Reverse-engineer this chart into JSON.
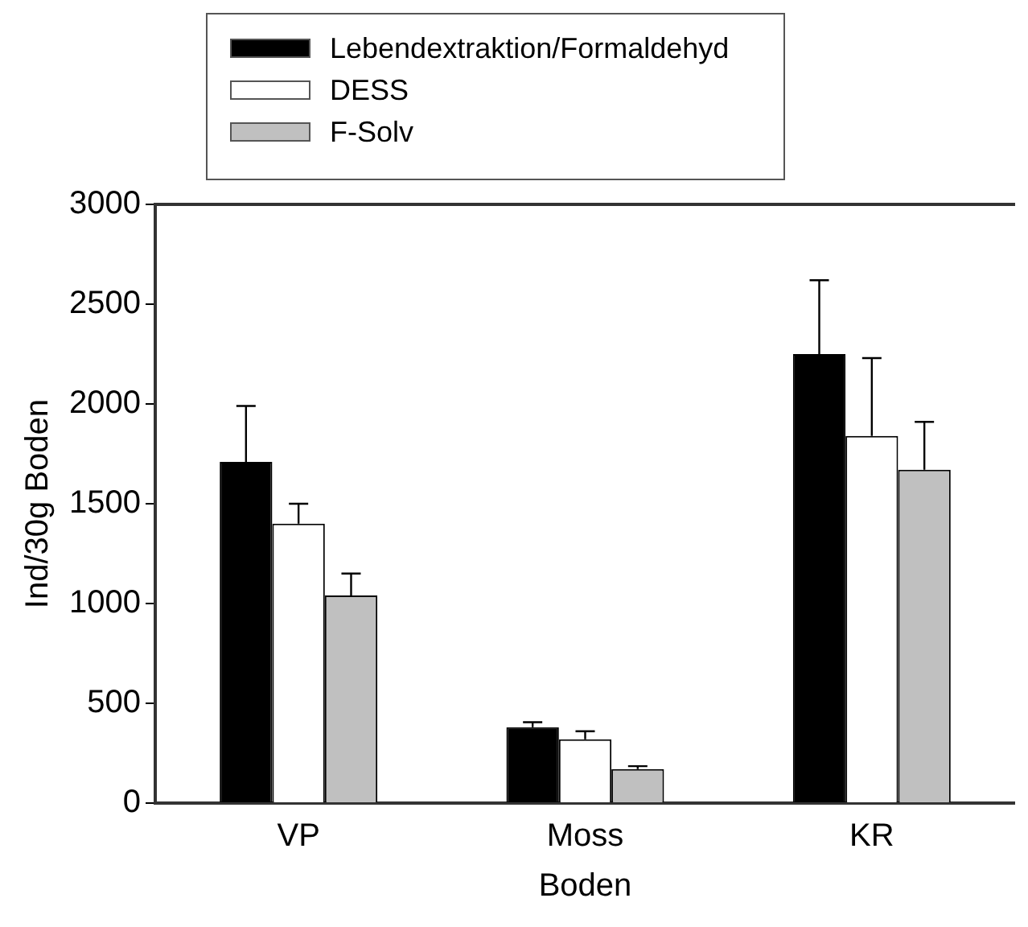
{
  "chart_data": {
    "type": "bar",
    "xlabel": "Boden",
    "ylabel": "Ind/30g Boden",
    "categories": [
      "VP",
      "Moss",
      "KR"
    ],
    "series": [
      {
        "name": "Lebendextraktion/Formaldehyd",
        "color": "#000000",
        "values": [
          1710,
          380,
          2250
        ],
        "errors": [
          280,
          25,
          370
        ]
      },
      {
        "name": "DESS",
        "color": "#ffffff",
        "values": [
          1400,
          320,
          1840
        ],
        "errors": [
          100,
          40,
          390
        ]
      },
      {
        "name": "F-Solv",
        "color": "#c0c0c0",
        "values": [
          1040,
          170,
          1670
        ],
        "errors": [
          110,
          15,
          240
        ]
      }
    ],
    "ylim": [
      0,
      3000
    ],
    "yticks": [
      0,
      500,
      1000,
      1500,
      2000,
      2500,
      3000
    ],
    "grid": false,
    "legend": "top"
  }
}
